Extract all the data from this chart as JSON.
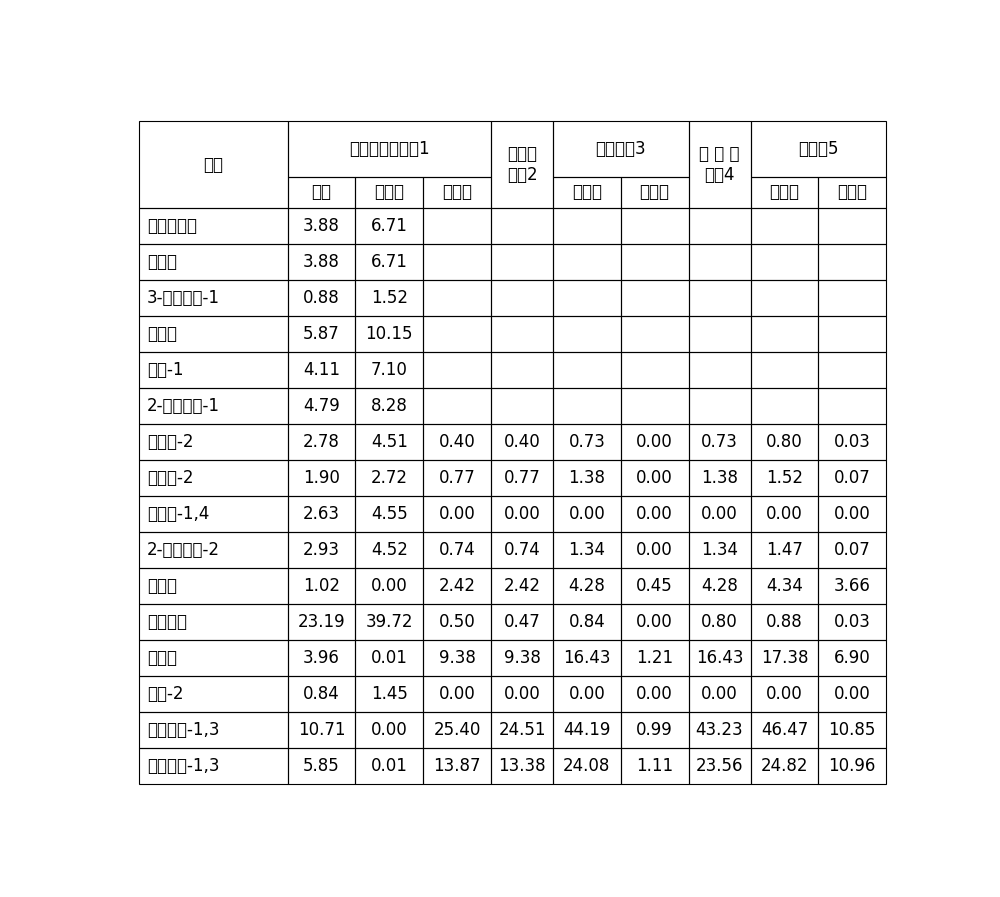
{
  "col_widths_ratio": [
    1.8,
    0.82,
    0.82,
    0.82,
    0.75,
    0.82,
    0.82,
    0.75,
    0.82,
    0.82
  ],
  "header1_labels": {
    "zf": "组份",
    "tower1": "异戊二烯分离塔1",
    "reactor1": "第一反\n应器2",
    "tower3": "脱双环坘3",
    "reactor2": "第 二 反\n应器4",
    "tower5": "脱重坘5"
  },
  "header2_labels": [
    "原料",
    "顶出料",
    "底出料",
    "出料",
    "顶出料",
    "底出料",
    "出料",
    "顶出料",
    "底出料"
  ],
  "rows": [
    [
      "碳四及以下",
      "3.88",
      "6.71",
      "",
      "",
      "",
      "",
      "",
      "",
      ""
    ],
    [
      "异戊烷",
      "3.88",
      "6.71",
      "",
      "",
      "",
      "",
      "",
      "",
      ""
    ],
    [
      "3-甲基丁烯-1",
      "0.88",
      "1.52",
      "",
      "",
      "",
      "",
      "",
      "",
      ""
    ],
    [
      "正戊烷",
      "5.87",
      "10.15",
      "",
      "",
      "",
      "",
      "",
      "",
      ""
    ],
    [
      "戊烯-1",
      "4.11",
      "7.10",
      "",
      "",
      "",
      "",
      "",
      "",
      ""
    ],
    [
      "2-甲基丁烯-1",
      "4.79",
      "8.28",
      "",
      "",
      "",
      "",
      "",
      "",
      ""
    ],
    [
      "反戊烯-2",
      "2.78",
      "4.51",
      "0.40",
      "0.40",
      "0.73",
      "0.00",
      "0.73",
      "0.80",
      "0.03"
    ],
    [
      "顺戊烯-2",
      "1.90",
      "2.72",
      "0.77",
      "0.77",
      "1.38",
      "0.00",
      "1.38",
      "1.52",
      "0.07"
    ],
    [
      "戊二烯-1,4",
      "2.63",
      "4.55",
      "0.00",
      "0.00",
      "0.00",
      "0.00",
      "0.00",
      "0.00",
      "0.00"
    ],
    [
      "2-甲基丁烯-2",
      "2.93",
      "4.52",
      "0.74",
      "0.74",
      "1.34",
      "0.00",
      "1.34",
      "1.47",
      "0.07"
    ],
    [
      "环戊烷",
      "1.02",
      "0.00",
      "2.42",
      "2.42",
      "4.28",
      "0.45",
      "4.28",
      "4.34",
      "3.66"
    ],
    [
      "异戊二烯",
      "23.19",
      "39.72",
      "0.50",
      "0.47",
      "0.84",
      "0.00",
      "0.80",
      "0.88",
      "0.03"
    ],
    [
      "环戊烯",
      "3.96",
      "0.01",
      "9.38",
      "9.38",
      "16.43",
      "1.21",
      "16.43",
      "17.38",
      "6.90"
    ],
    [
      "丁炔-2",
      "0.84",
      "1.45",
      "0.00",
      "0.00",
      "0.00",
      "0.00",
      "0.00",
      "0.00",
      "0.00"
    ],
    [
      "反戊二烯-1,3",
      "10.71",
      "0.00",
      "25.40",
      "24.51",
      "44.19",
      "0.99",
      "43.23",
      "46.47",
      "10.85"
    ],
    [
      "顺戊二烯-1,3",
      "5.85",
      "0.01",
      "13.87",
      "13.38",
      "24.08",
      "1.11",
      "23.56",
      "24.82",
      "10.96"
    ]
  ],
  "bg_color": "#ffffff",
  "border_color": "#000000",
  "font_size": 12,
  "header_font_size": 12
}
